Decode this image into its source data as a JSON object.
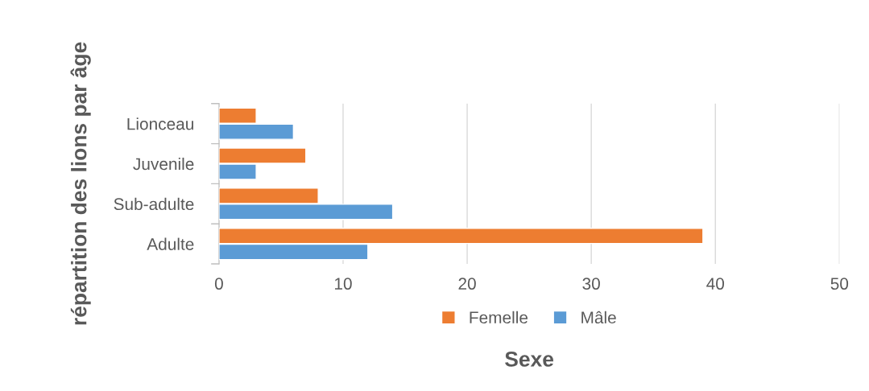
{
  "chart_data": {
    "type": "bar",
    "orientation": "horizontal",
    "categories": [
      "Lionceau",
      "Juvenile",
      "Sub-adulte",
      "Adulte"
    ],
    "series": [
      {
        "name": "Femelle",
        "color": "#ed7d31",
        "values": [
          3,
          7,
          8,
          39
        ]
      },
      {
        "name": "Mâle",
        "color": "#5b9bd5",
        "values": [
          6,
          3,
          14,
          12
        ]
      }
    ],
    "xlim": [
      0,
      50
    ],
    "xticks": [
      0,
      10,
      20,
      30,
      40,
      50
    ],
    "grid": "x",
    "legend": "bottom",
    "xlabel": "Sexe",
    "ylabel": "répartition des lions par âge"
  }
}
